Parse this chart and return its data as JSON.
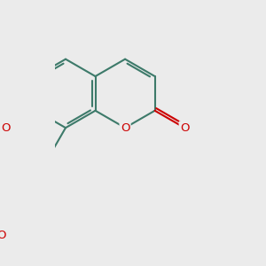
{
  "bg_color": "#ebebeb",
  "bond_color": "#3d7a6a",
  "oxygen_color": "#cc0000",
  "bond_lw": 1.5,
  "dbo": 0.08,
  "shrink": 0.12,
  "font_size": 9.5,
  "fig_w": 3.0,
  "fig_h": 3.0,
  "dpi": 100,
  "xlim": [
    -0.3,
    5.8
  ],
  "ylim": [
    -4.2,
    2.0
  ]
}
